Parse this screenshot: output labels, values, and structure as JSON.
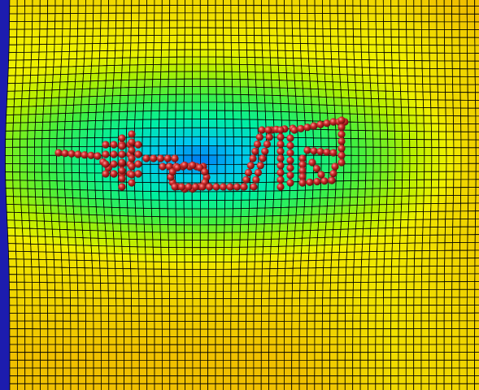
{
  "scene": {
    "description_tags": [
      "deformed-mesh",
      "heatmap-colored-cells",
      "particle-cluster"
    ],
    "colors": {
      "frame": "#1c1cae",
      "mesh_line": "#000000",
      "particle": "#cc2a2a",
      "particle_highlight": "#ff9a9a"
    },
    "colormap": [
      "#0018d8",
      "#0060f0",
      "#00c8f0",
      "#00f0a0",
      "#40f040",
      "#b0f000",
      "#f0f000",
      "#f0c000"
    ]
  }
}
